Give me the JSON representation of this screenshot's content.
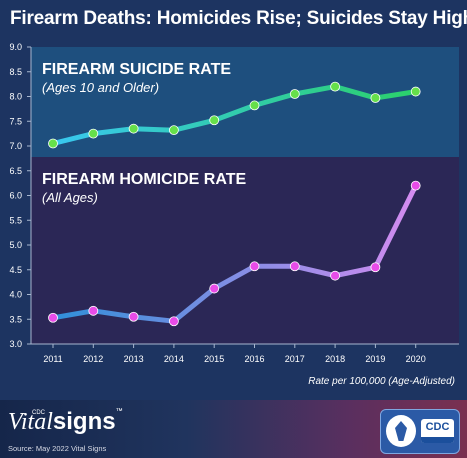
{
  "page": {
    "title": "Firearm Deaths: Homicides Rise; Suicides Stay High",
    "brand_vital": "Vital",
    "brand_signs": "signs",
    "brand_cdc": "CDC",
    "brand_tm": "™",
    "source": "Source: May 2022 Vital Signs",
    "logo_text": "CDC"
  },
  "colors": {
    "background": "#1d3461",
    "suicide_panel": "#1e4f7e",
    "homicide_panel": "#2b2756",
    "suicide_line_start": "#39c8f0",
    "suicide_line_end": "#2bd06a",
    "suicide_marker": "#66e04a",
    "homicide_line_start": "#2f8fd8",
    "homicide_line_end": "#d48cf0",
    "homicide_marker": "#e84ce8"
  },
  "chart_data": {
    "type": "line",
    "x": [
      "2011",
      "2012",
      "2013",
      "2014",
      "2015",
      "2016",
      "2017",
      "2018",
      "2019",
      "2020"
    ],
    "y_ticks": [
      "3.0",
      "3.5",
      "4.0",
      "4.5",
      "5.0",
      "5.5",
      "6.0",
      "6.5",
      "7.0",
      "7.5",
      "8.0",
      "8.5",
      "9.0"
    ],
    "ylim": [
      3.0,
      9.0
    ],
    "x_note": "Rate per 100,000 (Age-Adjusted)",
    "grid": false,
    "series": [
      {
        "name": "FIREARM SUICIDE RATE",
        "subtitle": "(Ages 10 and Older)",
        "values": [
          7.05,
          7.25,
          7.35,
          7.32,
          7.52,
          7.82,
          8.05,
          8.2,
          7.97,
          8.1
        ]
      },
      {
        "name": "FIREARM HOMICIDE RATE",
        "subtitle": "(All Ages)",
        "values": [
          3.53,
          3.67,
          3.55,
          3.46,
          4.12,
          4.57,
          4.57,
          4.38,
          4.55,
          6.2
        ]
      }
    ]
  }
}
